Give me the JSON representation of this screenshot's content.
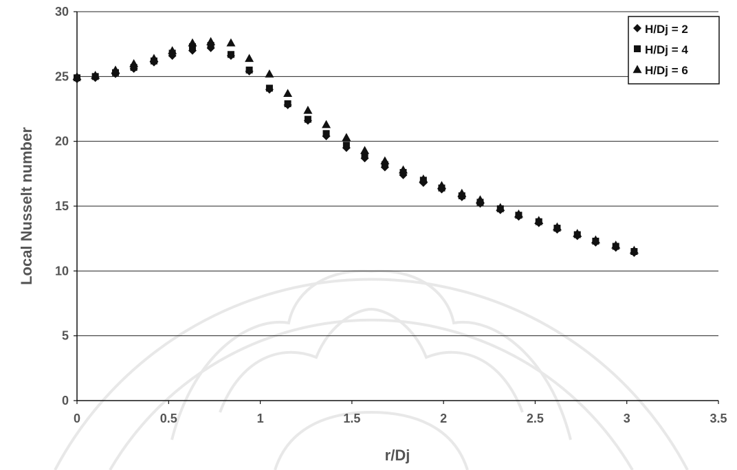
{
  "chart_data": {
    "type": "scatter",
    "xlabel": "r/Dj",
    "ylabel": "Local Nusselt number",
    "xlim": [
      0,
      3.5
    ],
    "ylim": [
      0,
      30
    ],
    "xticks": [
      "0",
      "0.5",
      "1",
      "1.5",
      "2",
      "2.5",
      "3",
      "3.5"
    ],
    "yticks": [
      "0",
      "5",
      "10",
      "15",
      "20",
      "25",
      "30"
    ],
    "grid": "horizontal",
    "legend_position": "top-right",
    "series": [
      {
        "name": "H/Dj = 2",
        "marker": "diamond",
        "x": [
          0,
          0.1,
          0.21,
          0.31,
          0.42,
          0.52,
          0.63,
          0.73,
          0.84,
          0.94,
          1.05,
          1.15,
          1.26,
          1.36,
          1.47,
          1.57,
          1.68,
          1.78,
          1.89,
          1.99,
          2.1,
          2.2,
          2.31,
          2.41,
          2.52,
          2.62,
          2.73,
          2.83,
          2.94,
          3.04
        ],
        "y": [
          24.8,
          24.9,
          25.2,
          25.6,
          26.1,
          26.6,
          27.0,
          27.2,
          26.6,
          25.4,
          24.0,
          22.8,
          21.6,
          20.4,
          19.5,
          18.7,
          18.0,
          17.4,
          16.8,
          16.3,
          15.7,
          15.2,
          14.7,
          14.2,
          13.7,
          13.2,
          12.7,
          12.2,
          11.8,
          11.4
        ]
      },
      {
        "name": "H/Dj = 4",
        "marker": "square",
        "x": [
          0,
          0.1,
          0.21,
          0.31,
          0.42,
          0.52,
          0.63,
          0.73,
          0.84,
          0.94,
          1.05,
          1.15,
          1.26,
          1.36,
          1.47,
          1.57,
          1.68,
          1.78,
          1.89,
          1.99,
          2.1,
          2.2,
          2.31,
          2.41,
          2.52,
          2.62,
          2.73,
          2.83,
          2.94,
          3.04
        ],
        "y": [
          24.9,
          25.0,
          25.3,
          25.7,
          26.2,
          26.8,
          27.3,
          27.4,
          26.7,
          25.5,
          24.1,
          22.9,
          21.7,
          20.6,
          19.7,
          18.9,
          18.2,
          17.6,
          17.0,
          16.4,
          15.8,
          15.3,
          14.8,
          14.3,
          13.8,
          13.3,
          12.8,
          12.3,
          11.9,
          11.5
        ]
      },
      {
        "name": "H/Dj = 6",
        "marker": "triangle",
        "x": [
          0,
          0.1,
          0.21,
          0.31,
          0.42,
          0.52,
          0.63,
          0.73,
          0.84,
          0.94,
          1.05,
          1.15,
          1.26,
          1.36,
          1.47,
          1.57,
          1.68,
          1.78,
          1.89,
          1.99,
          2.1,
          2.2,
          2.31,
          2.41,
          2.52,
          2.62,
          2.73,
          2.83,
          2.94,
          3.04
        ],
        "y": [
          25.0,
          25.1,
          25.5,
          26.0,
          26.4,
          27.0,
          27.6,
          27.7,
          27.6,
          26.4,
          25.2,
          23.7,
          22.4,
          21.3,
          20.3,
          19.3,
          18.5,
          17.8,
          17.1,
          16.6,
          16.0,
          15.5,
          14.9,
          14.4,
          13.9,
          13.4,
          12.9,
          12.4,
          12.0,
          11.6
        ]
      }
    ]
  },
  "colors": {
    "marker": "#111111",
    "axis_text": "#555555",
    "gridline": "#222222"
  },
  "icons": {
    "background": "lotus-seal-watermark"
  }
}
